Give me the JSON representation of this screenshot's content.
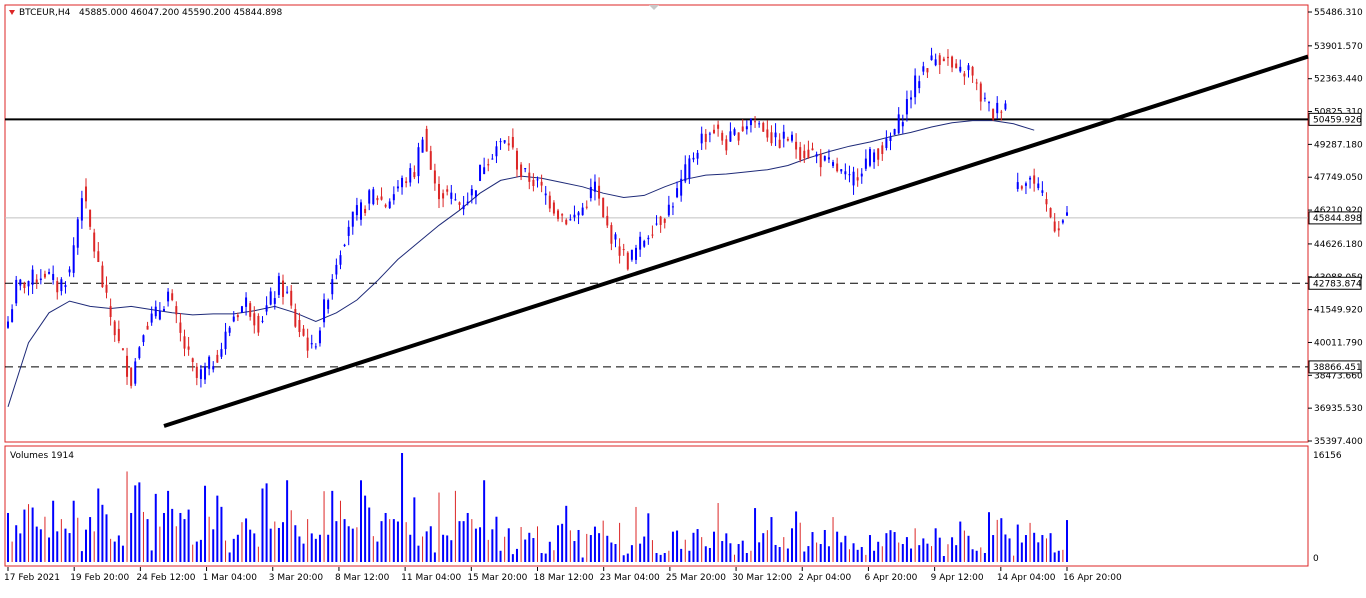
{
  "header": {
    "symbol": "BTCEUR,H4",
    "ohlc": "45885.000 46047.200 45590.200 45844.898",
    "triangle_icon": "down-triangle-icon"
  },
  "volume_panel": {
    "label": "Volumes 1914",
    "max_label": "16156",
    "zero_label": "0"
  },
  "colors": {
    "frame": "#dc2626",
    "bull": "#0000ff",
    "bear": "#dc2626",
    "ma_line": "#1e2a78",
    "trendline": "#000000",
    "price_line": "#c0c0c0"
  },
  "chart_data": {
    "type": "candlestick",
    "title": "BTCEUR,H4",
    "price_axis_ticks": [
      55486.31,
      53901.57,
      52363.44,
      50825.31,
      49287.18,
      47749.05,
      46210.92,
      44626.18,
      43088.05,
      41549.92,
      40011.79,
      38473.66,
      36935.53,
      35397.4
    ],
    "ylim": [
      35397.4,
      55486.31
    ],
    "labeled_levels": [
      {
        "value": "50459.926",
        "style": "solid"
      },
      {
        "value": "42783.874",
        "style": "dashed"
      },
      {
        "value": "38866.451",
        "style": "dashed"
      }
    ],
    "current_price": "45844.898",
    "trendline": {
      "from": {
        "date": "24 Feb 2021",
        "price": 36100
      },
      "to": {
        "date": "19 Apr 2021",
        "price": 53400
      }
    },
    "x_tick_labels": [
      "17 Feb 2021",
      "19 Feb 20:00",
      "24 Feb 12:00",
      "1 Mar 04:00",
      "3 Mar 20:00",
      "8 Mar 12:00",
      "11 Mar 04:00",
      "15 Mar 20:00",
      "18 Mar 12:00",
      "23 Mar 04:00",
      "25 Mar 20:00",
      "30 Mar 12:00",
      "2 Apr 04:00",
      "6 Apr 20:00",
      "9 Apr 12:00",
      "14 Apr 04:00",
      "16 Apr 20:00"
    ],
    "close_path": [
      [
        0,
        41000
      ],
      [
        2,
        42600
      ],
      [
        5,
        42900
      ],
      [
        9,
        43300
      ],
      [
        12,
        42600
      ],
      [
        15,
        43300
      ],
      [
        18,
        47100
      ],
      [
        21,
        44400
      ],
      [
        24,
        41900
      ],
      [
        27,
        39900
      ],
      [
        30,
        38300
      ],
      [
        33,
        40800
      ],
      [
        36,
        41300
      ],
      [
        39,
        42300
      ],
      [
        42,
        40300
      ],
      [
        44,
        39300
      ],
      [
        46,
        38300
      ],
      [
        49,
        38900
      ],
      [
        52,
        39800
      ],
      [
        55,
        41300
      ],
      [
        58,
        41900
      ],
      [
        61,
        40900
      ],
      [
        64,
        42000
      ],
      [
        66,
        42700
      ],
      [
        68,
        42200
      ],
      [
        70,
        40900
      ],
      [
        72,
        40300
      ],
      [
        74,
        39600
      ],
      [
        76,
        40800
      ],
      [
        78,
        42400
      ],
      [
        80,
        43900
      ],
      [
        83,
        45600
      ],
      [
        86,
        46200
      ],
      [
        89,
        47000
      ],
      [
        92,
        46500
      ],
      [
        95,
        47300
      ],
      [
        97,
        47700
      ],
      [
        99,
        48000
      ],
      [
        101,
        49900
      ],
      [
        104,
        47200
      ],
      [
        107,
        46900
      ],
      [
        110,
        46500
      ],
      [
        113,
        47000
      ],
      [
        116,
        48500
      ],
      [
        119,
        49200
      ],
      [
        122,
        49400
      ],
      [
        125,
        47900
      ],
      [
        128,
        47600
      ],
      [
        131,
        46900
      ],
      [
        134,
        46100
      ],
      [
        137,
        45700
      ],
      [
        140,
        46300
      ],
      [
        143,
        47400
      ],
      [
        145,
        45700
      ],
      [
        148,
        44700
      ],
      [
        151,
        43800
      ],
      [
        154,
        44600
      ],
      [
        157,
        45500
      ],
      [
        160,
        46000
      ],
      [
        163,
        47000
      ],
      [
        166,
        48400
      ],
      [
        169,
        49600
      ],
      [
        172,
        50000
      ],
      [
        175,
        49300
      ],
      [
        178,
        49900
      ],
      [
        181,
        50500
      ],
      [
        184,
        50100
      ],
      [
        187,
        49400
      ],
      [
        190,
        49600
      ],
      [
        193,
        49000
      ],
      [
        196,
        48900
      ],
      [
        199,
        48400
      ],
      [
        202,
        48100
      ],
      [
        205,
        47500
      ],
      [
        208,
        48300
      ],
      [
        211,
        48900
      ],
      [
        214,
        49200
      ],
      [
        217,
        50300
      ],
      [
        220,
        51700
      ],
      [
        223,
        52900
      ],
      [
        226,
        53300
      ],
      [
        228,
        53500
      ],
      [
        231,
        52500
      ],
      [
        234,
        52800
      ],
      [
        237,
        51500
      ],
      [
        240,
        50700
      ],
      [
        243,
        51400
      ],
      [
        null,
        null
      ],
      [
        246,
        47500
      ],
      [
        249,
        47700
      ],
      [
        252,
        46700
      ],
      [
        255,
        45500
      ],
      [
        258,
        45844.898
      ]
    ],
    "moving_average": [
      [
        0,
        37000
      ],
      [
        5,
        40000
      ],
      [
        10,
        41400
      ],
      [
        15,
        41950
      ],
      [
        20,
        41700
      ],
      [
        25,
        41600
      ],
      [
        30,
        41700
      ],
      [
        35,
        41550
      ],
      [
        40,
        41400
      ],
      [
        45,
        41300
      ],
      [
        50,
        41350
      ],
      [
        55,
        41350
      ],
      [
        60,
        41500
      ],
      [
        65,
        41700
      ],
      [
        70,
        41400
      ],
      [
        75,
        41000
      ],
      [
        80,
        41400
      ],
      [
        85,
        42000
      ],
      [
        90,
        42900
      ],
      [
        95,
        43900
      ],
      [
        100,
        44700
      ],
      [
        105,
        45500
      ],
      [
        110,
        46200
      ],
      [
        115,
        47000
      ],
      [
        120,
        47600
      ],
      [
        125,
        47800
      ],
      [
        130,
        47700
      ],
      [
        135,
        47500
      ],
      [
        140,
        47300
      ],
      [
        145,
        47000
      ],
      [
        150,
        46800
      ],
      [
        155,
        46900
      ],
      [
        160,
        47300
      ],
      [
        165,
        47650
      ],
      [
        170,
        47850
      ],
      [
        175,
        47900
      ],
      [
        180,
        48000
      ],
      [
        185,
        48100
      ],
      [
        190,
        48300
      ],
      [
        195,
        48650
      ],
      [
        200,
        48950
      ],
      [
        205,
        49200
      ],
      [
        210,
        49400
      ],
      [
        215,
        49650
      ],
      [
        220,
        49850
      ],
      [
        225,
        50100
      ],
      [
        230,
        50300
      ],
      [
        235,
        50400
      ],
      [
        240,
        50400
      ],
      [
        245,
        50250
      ],
      [
        250,
        49950
      ]
    ],
    "volume_samples": [
      12000,
      9000,
      14000,
      6000,
      16000,
      8000,
      11000,
      4000,
      15000,
      7000,
      12000,
      9000,
      5000,
      13000,
      6000,
      10000,
      8000,
      15000,
      5000,
      11000,
      7000,
      12000,
      4000,
      9000,
      13000,
      6000,
      10000,
      3000,
      8000,
      11000,
      5000,
      9000,
      7000,
      4000,
      12000,
      6000,
      10000,
      8000,
      3000,
      9000,
      5000,
      7000,
      11000,
      4000,
      8000,
      6000,
      2000,
      9000,
      5000,
      7000,
      3000,
      8000,
      6000,
      4000,
      10000,
      5000,
      7000,
      3000,
      6000,
      9000,
      4000,
      8000,
      2000,
      6000,
      5000,
      3000,
      7000,
      4000,
      9000,
      5000
    ]
  }
}
